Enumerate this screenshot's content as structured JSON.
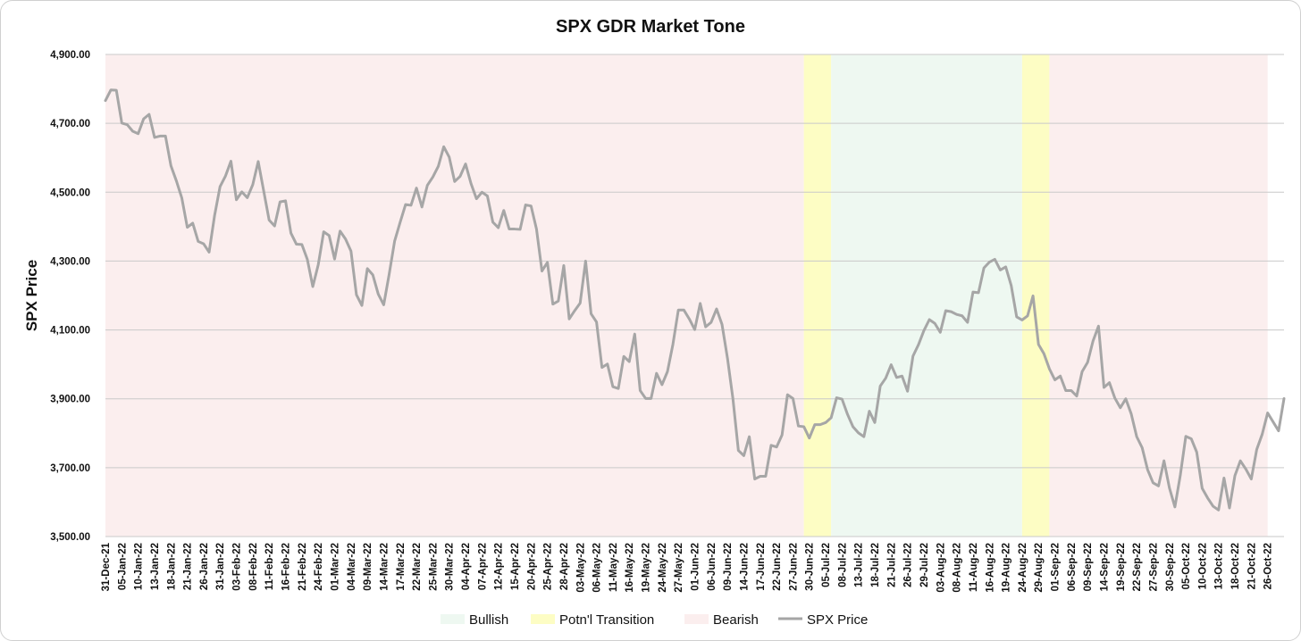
{
  "chart_data": {
    "type": "line",
    "title": "SPX GDR Market Tone",
    "ylabel": "SPX Price",
    "xlabel": "",
    "ylim": [
      3500,
      4900
    ],
    "yticks": [
      3500,
      3700,
      3900,
      4100,
      4300,
      4500,
      4700,
      4900
    ],
    "ytick_labels": [
      "3,500.00",
      "3,700.00",
      "3,900.00",
      "4,100.00",
      "4,300.00",
      "4,500.00",
      "4,700.00",
      "4,900.00"
    ],
    "grid": true,
    "legend_position": "bottom",
    "legend": [
      {
        "label": "Bullish",
        "kind": "area",
        "color": "#eef8f1"
      },
      {
        "label": "Potn'l Transition",
        "kind": "area",
        "color": "#fdfdc4"
      },
      {
        "label": "Bearish",
        "kind": "area",
        "color": "#fbeeee"
      },
      {
        "label": "SPX Price",
        "kind": "line",
        "color": "#a6a6a6"
      }
    ],
    "x_labels": [
      "31-Dec-21",
      "05-Jan-22",
      "10-Jan-22",
      "13-Jan-22",
      "18-Jan-22",
      "21-Jan-22",
      "26-Jan-22",
      "31-Jan-22",
      "03-Feb-22",
      "08-Feb-22",
      "11-Feb-22",
      "16-Feb-22",
      "21-Feb-22",
      "24-Feb-22",
      "01-Mar-22",
      "04-Mar-22",
      "09-Mar-22",
      "14-Mar-22",
      "17-Mar-22",
      "22-Mar-22",
      "25-Mar-22",
      "30-Mar-22",
      "04-Apr-22",
      "07-Apr-22",
      "12-Apr-22",
      "15-Apr-22",
      "20-Apr-22",
      "25-Apr-22",
      "28-Apr-22",
      "03-May-22",
      "06-May-22",
      "11-May-22",
      "16-May-22",
      "19-May-22",
      "24-May-22",
      "27-May-22",
      "01-Jun-22",
      "06-Jun-22",
      "09-Jun-22",
      "14-Jun-22",
      "17-Jun-22",
      "22-Jun-22",
      "27-Jun-22",
      "30-Jun-22",
      "05-Jul-22",
      "08-Jul-22",
      "13-Jul-22",
      "18-Jul-22",
      "21-Jul-22",
      "26-Jul-22",
      "29-Jul-22",
      "03-Aug-22",
      "08-Aug-22",
      "11-Aug-22",
      "16-Aug-22",
      "19-Aug-22",
      "24-Aug-22",
      "29-Aug-22",
      "01-Sep-22",
      "06-Sep-22",
      "09-Sep-22",
      "14-Sep-22",
      "19-Sep-22",
      "22-Sep-22",
      "27-Sep-22",
      "30-Sep-22",
      "05-Oct-22",
      "10-Oct-22",
      "13-Oct-22",
      "18-Oct-22",
      "21-Oct-22",
      "26-Oct-22"
    ],
    "regimes": [
      {
        "tone": "Bearish",
        "start_index": 0,
        "end_index": 128
      },
      {
        "tone": "Potn'l Transition",
        "start_index": 128,
        "end_index": 133
      },
      {
        "tone": "Bullish",
        "start_index": 133,
        "end_index": 168
      },
      {
        "tone": "Potn'l Transition",
        "start_index": 168,
        "end_index": 173
      },
      {
        "tone": "Bearish",
        "start_index": 173,
        "end_index": 213
      }
    ],
    "series": [
      {
        "name": "SPX Price",
        "color": "#a6a6a6",
        "values": [
          4766,
          4797,
          4796,
          4701,
          4696,
          4677,
          4670,
          4713,
          4726,
          4659,
          4663,
          4663,
          4577,
          4533,
          4483,
          4398,
          4410,
          4357,
          4350,
          4326,
          4432,
          4516,
          4547,
          4590,
          4478,
          4501,
          4484,
          4522,
          4589,
          4504,
          4419,
          4402,
          4472,
          4475,
          4381,
          4349,
          4348,
          4305,
          4226,
          4289,
          4385,
          4374,
          4306,
          4387,
          4364,
          4329,
          4202,
          4171,
          4278,
          4260,
          4204,
          4173,
          4262,
          4358,
          4412,
          4464,
          4462,
          4512,
          4457,
          4520,
          4544,
          4575,
          4632,
          4602,
          4531,
          4546,
          4582,
          4525,
          4481,
          4500,
          4489,
          4413,
          4397,
          4447,
          4393,
          4393,
          4392,
          4463,
          4460,
          4393,
          4271,
          4296,
          4175,
          4184,
          4287,
          4132,
          4156,
          4178,
          4300,
          4147,
          4123,
          3991,
          4001,
          3935,
          3930,
          4023,
          4008,
          4088,
          3924,
          3901,
          3901,
          3974,
          3941,
          3979,
          4058,
          4158,
          4158,
          4132,
          4101,
          4177,
          4109,
          4122,
          4161,
          4116,
          4018,
          3900,
          3750,
          3735,
          3790,
          3667,
          3675,
          3675,
          3765,
          3760,
          3795,
          3912,
          3901,
          3821,
          3819,
          3786,
          3825,
          3825,
          3831,
          3845,
          3903,
          3899,
          3855,
          3819,
          3801,
          3790,
          3864,
          3831,
          3937,
          3960,
          3999,
          3962,
          3966,
          3922,
          4024,
          4057,
          4098,
          4130,
          4119,
          4093,
          4156,
          4153,
          4145,
          4141,
          4122,
          4210,
          4208,
          4280,
          4297,
          4305,
          4274,
          4283,
          4229,
          4138,
          4129,
          4141,
          4199,
          4058,
          4031,
          3987,
          3955,
          3966,
          3924,
          3924,
          3908,
          3979,
          4006,
          4068,
          4111,
          3933,
          3947,
          3902,
          3874,
          3900,
          3856,
          3790,
          3758,
          3694,
          3656,
          3647,
          3720,
          3641,
          3586,
          3679,
          3791,
          3784,
          3745,
          3640,
          3612,
          3588,
          3577,
          3670,
          3583,
          3677,
          3720,
          3696,
          3667,
          3753,
          3797,
          3859,
          3833,
          3807,
          3901
        ]
      }
    ]
  }
}
